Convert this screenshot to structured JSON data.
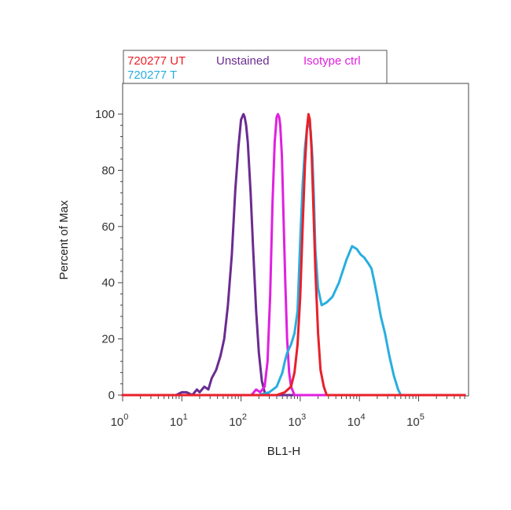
{
  "chart_data": {
    "type": "line",
    "title": "",
    "xlabel": "BL1-H",
    "ylabel": "Percent of Max",
    "x_scale": "log10",
    "xlim": [
      1,
      700000
    ],
    "ylim": [
      0,
      110
    ],
    "x_ticks": [
      {
        "value": 1,
        "base": "10",
        "exp": "0"
      },
      {
        "value": 10,
        "base": "10",
        "exp": "1"
      },
      {
        "value": 100,
        "base": "10",
        "exp": "2"
      },
      {
        "value": 1000,
        "base": "10",
        "exp": "3"
      },
      {
        "value": 10000,
        "base": "10",
        "exp": "4"
      },
      {
        "value": 100000,
        "base": "10",
        "exp": "5"
      }
    ],
    "y_ticks": [
      "0",
      "20",
      "40",
      "60",
      "80",
      "100"
    ],
    "legend": {
      "placement": "top-left",
      "entries": [
        {
          "label": "720277 UT",
          "color": "#e8202a"
        },
        {
          "label": "Unstained",
          "color": "#6a2c91"
        },
        {
          "label": "Isotype ctrl",
          "color": "#e020e0"
        },
        {
          "label": "720277 T",
          "color": "#29aee0"
        }
      ]
    },
    "series": [
      {
        "name": "Unstained",
        "color": "#6a2c91",
        "x": [
          1,
          8,
          10,
          12,
          15,
          18,
          20,
          24,
          28,
          32,
          38,
          45,
          52,
          60,
          70,
          80,
          90,
          100,
          110,
          115,
          122,
          130,
          145,
          160,
          180,
          200,
          225,
          250,
          300,
          400,
          600000
        ],
        "y": [
          0,
          0,
          1,
          1,
          0,
          2,
          1,
          3,
          2,
          6,
          9,
          14,
          20,
          32,
          50,
          73,
          88,
          98,
          100,
          99,
          96,
          90,
          72,
          52,
          30,
          15,
          5,
          1,
          0,
          0,
          0
        ]
      },
      {
        "name": "Isotype ctrl",
        "color": "#e020e0",
        "x": [
          1,
          150,
          180,
          210,
          250,
          280,
          310,
          340,
          370,
          400,
          420,
          440,
          460,
          490,
          520,
          560,
          600,
          650,
          700,
          800,
          600000
        ],
        "y": [
          0,
          0,
          2,
          1,
          3,
          12,
          35,
          68,
          90,
          99,
          100,
          99,
          96,
          85,
          65,
          40,
          20,
          8,
          3,
          0,
          0
        ]
      },
      {
        "name": "720277 T",
        "color": "#29aee0",
        "x": [
          1,
          200,
          300,
          400,
          500,
          550,
          600,
          700,
          800,
          900,
          1000,
          1100,
          1200,
          1300,
          1400,
          1500,
          1600,
          1700,
          1800,
          2000,
          2300,
          2800,
          3500,
          4500,
          6000,
          7500,
          9000,
          10500,
          12000,
          14000,
          16000,
          18000,
          20000,
          23000,
          27000,
          32000,
          38000,
          45000,
          50000,
          55000,
          600000
        ],
        "y": [
          0,
          0,
          1,
          3,
          8,
          12,
          15,
          18,
          22,
          30,
          55,
          75,
          88,
          95,
          97,
          94,
          85,
          70,
          52,
          38,
          32,
          33,
          35,
          40,
          48,
          53,
          52,
          50,
          49,
          47,
          45,
          40,
          35,
          28,
          22,
          14,
          7,
          2,
          0,
          0,
          0
        ]
      },
      {
        "name": "720277 UT",
        "color": "#e8202a",
        "x": [
          1,
          400,
          550,
          700,
          800,
          900,
          1000,
          1100,
          1200,
          1300,
          1380,
          1450,
          1550,
          1650,
          1800,
          2000,
          2200,
          2500,
          2800,
          600000
        ],
        "y": [
          0,
          0,
          1,
          3,
          8,
          18,
          35,
          60,
          82,
          95,
          100,
          98,
          88,
          70,
          45,
          22,
          9,
          3,
          0,
          0
        ]
      }
    ]
  }
}
